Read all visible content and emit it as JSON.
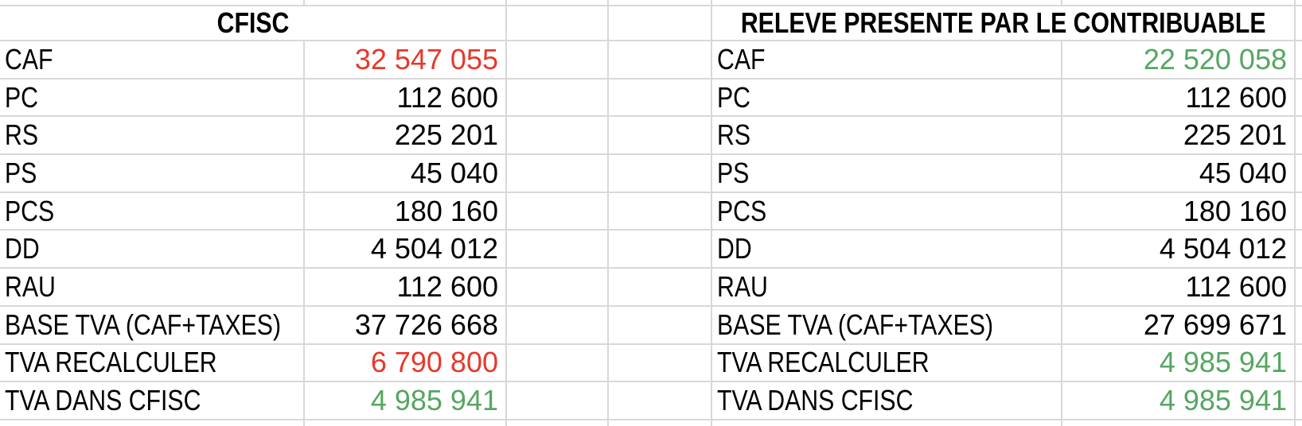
{
  "colors": {
    "red": "#e6392b",
    "green": "#55a661",
    "black": "#000000",
    "gridline": "#d8d8d8"
  },
  "left_table": {
    "title": "CFISC",
    "rows": [
      {
        "label": "CAF",
        "value": "32 547 055",
        "color": "red"
      },
      {
        "label": "PC",
        "value": "112 600",
        "color": "black"
      },
      {
        "label": "RS",
        "value": "225 201",
        "color": "black"
      },
      {
        "label": "PS",
        "value": "45 040",
        "color": "black"
      },
      {
        "label": "PCS",
        "value": "180 160",
        "color": "black"
      },
      {
        "label": "DD",
        "value": "4 504 012",
        "color": "black"
      },
      {
        "label": "RAU",
        "value": "112 600",
        "color": "black"
      },
      {
        "label": "BASE TVA (CAF+TAXES)",
        "value": "37 726 668",
        "color": "black"
      },
      {
        "label": "TVA RECALCULER",
        "value": "6 790 800",
        "color": "red"
      },
      {
        "label": "TVA DANS CFISC",
        "value": "4 985 941",
        "color": "green"
      }
    ]
  },
  "right_table": {
    "title": "RELEVE PRESENTE PAR LE CONTRIBUABLE",
    "rows": [
      {
        "label": "CAF",
        "value": "22 520 058",
        "color": "green"
      },
      {
        "label": "PC",
        "value": "112 600",
        "color": "black"
      },
      {
        "label": "RS",
        "value": "225 201",
        "color": "black"
      },
      {
        "label": "PS",
        "value": "45 040",
        "color": "black"
      },
      {
        "label": "PCS",
        "value": "180 160",
        "color": "black"
      },
      {
        "label": "DD",
        "value": "4 504 012",
        "color": "black"
      },
      {
        "label": "RAU",
        "value": "112 600",
        "color": "black"
      },
      {
        "label": "BASE TVA (CAF+TAXES)",
        "value": "27 699 671",
        "color": "black"
      },
      {
        "label": "TVA RECALCULER",
        "value": "4 985 941",
        "color": "green"
      },
      {
        "label": "TVA DANS CFISC",
        "value": "4 985 941",
        "color": "green"
      }
    ]
  }
}
